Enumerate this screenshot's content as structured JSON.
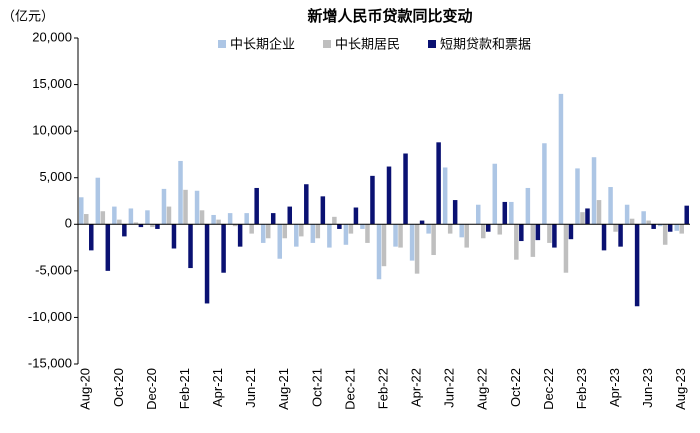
{
  "chart_data": {
    "type": "bar",
    "title": "新增人民币贷款同比变动",
    "y_unit": "（亿元）",
    "categories": [
      "Aug-20",
      null,
      "Oct-20",
      null,
      "Dec-20",
      null,
      "Feb-21",
      null,
      "Apr-21",
      null,
      "Jun-21",
      null,
      "Aug-21",
      null,
      "Oct-21",
      null,
      "Dec-21",
      null,
      "Feb-22",
      null,
      "Apr-22",
      null,
      "Jun-22",
      null,
      "Aug-22",
      null,
      "Oct-22",
      null,
      "Dec-22",
      null,
      "Feb-23",
      null,
      "Apr-23",
      null,
      "Jun-23",
      null,
      "Aug-23"
    ],
    "series": [
      {
        "name": "中长期企业",
        "color": "#adc6e5",
        "values": [
          2900,
          5000,
          1900,
          1700,
          1500,
          3800,
          6800,
          3600,
          1000,
          1200,
          1200,
          -2000,
          -3700,
          -2400,
          -2000,
          -2500,
          -2200,
          -500,
          -5900,
          -2400,
          -3900,
          -1000,
          6100,
          -1400,
          2100,
          6500,
          2400,
          3900,
          8700,
          14000,
          6000,
          7200,
          4000,
          2100,
          1400,
          -200,
          -700
        ]
      },
      {
        "name": "中长期居民",
        "color": "#bfbfbf",
        "values": [
          1100,
          1400,
          500,
          200,
          -300,
          1900,
          3700,
          1500,
          500,
          -200,
          -1000,
          -1500,
          -1500,
          -1300,
          -1500,
          800,
          -1000,
          -2000,
          -4500,
          -2500,
          -5300,
          -3300,
          -1000,
          -2500,
          -1500,
          -1100,
          -3800,
          -3500,
          -2000,
          -5200,
          1300,
          2600,
          -800,
          600,
          400,
          -2200,
          -1000
        ]
      },
      {
        "name": "短期贷款和票据",
        "color": "#0a1172",
        "values": [
          -2800,
          -5000,
          -1300,
          -300,
          -500,
          -2600,
          -4700,
          -8500,
          -5200,
          -2400,
          3900,
          1200,
          1900,
          4300,
          3000,
          -500,
          1800,
          5200,
          6200,
          7600,
          400,
          8800,
          2600,
          0,
          -800,
          2400,
          -1800,
          -1700,
          -2500,
          -1600,
          1700,
          -2800,
          -2400,
          -8800,
          -500,
          -800,
          2000
        ]
      }
    ],
    "ylim": [
      -15000,
      20000
    ],
    "yticks": [
      {
        "value": -15000,
        "label": "-15,000"
      },
      {
        "value": -10000,
        "label": "-10,000"
      },
      {
        "value": -5000,
        "label": "-5,000"
      },
      0,
      {
        "value": 5000,
        "label": "5,000"
      },
      {
        "value": 10000,
        "label": "10,000"
      },
      {
        "value": 15000,
        "label": "15,000"
      },
      {
        "value": 20000,
        "label": "20,000"
      }
    ],
    "grid": false
  }
}
